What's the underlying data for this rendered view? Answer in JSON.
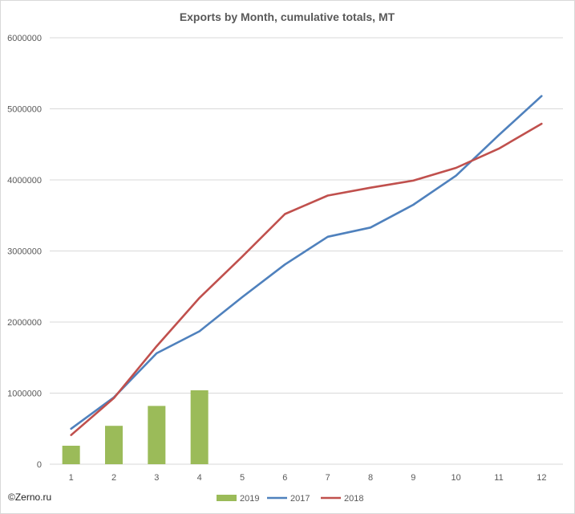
{
  "credit": "©Zerno.ru",
  "chart_data": {
    "type": "bar",
    "title": "Exports by Month, cumulative totals, MT",
    "xlabel": "",
    "ylabel": "",
    "categories": [
      "1",
      "2",
      "3",
      "4",
      "5",
      "6",
      "7",
      "8",
      "9",
      "10",
      "11",
      "12"
    ],
    "ylim": [
      0,
      6000000
    ],
    "yticks": [
      0,
      1000000,
      2000000,
      3000000,
      4000000,
      5000000,
      6000000
    ],
    "ytick_labels": [
      "0",
      "1000000",
      "2000000",
      "3000000",
      "4000000",
      "5000000",
      "6000000"
    ],
    "grid": true,
    "legend_position": "bottom",
    "series": [
      {
        "name": "2019",
        "kind": "bar",
        "color": "#9bbb59",
        "values": [
          260000,
          540000,
          820000,
          1040000,
          null,
          null,
          null,
          null,
          null,
          null,
          null,
          null
        ]
      },
      {
        "name": "2017",
        "kind": "line",
        "color": "#4f81bd",
        "values": [
          500000,
          940000,
          1560000,
          1870000,
          2350000,
          2810000,
          3200000,
          3330000,
          3650000,
          4060000,
          4630000,
          5180000
        ]
      },
      {
        "name": "2018",
        "kind": "line",
        "color": "#c0504d",
        "values": [
          410000,
          930000,
          1660000,
          2340000,
          2920000,
          3520000,
          3780000,
          3890000,
          3990000,
          4170000,
          4440000,
          4790000
        ]
      }
    ]
  }
}
